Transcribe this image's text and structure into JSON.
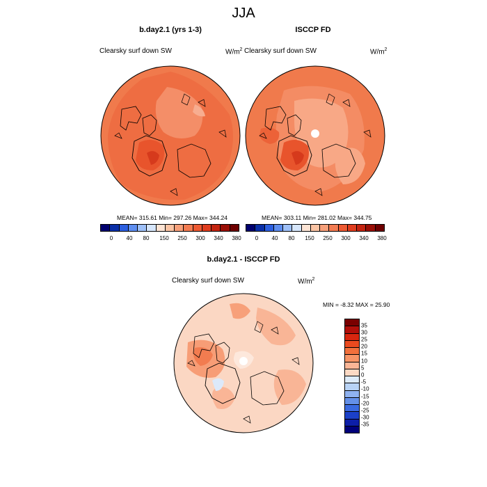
{
  "figure": {
    "season_title": "JJA"
  },
  "panels": {
    "model": {
      "title": "b.day2.1 (yrs 1-3)",
      "variable": "Clearsky surf down SW",
      "units_base": "W/m",
      "units_exp": "2",
      "stats": "MEAN= 315.61  Min= 297.26  Max= 344.24",
      "mean": 315.61,
      "min": 297.26,
      "max": 344.24
    },
    "obs": {
      "title": "ISCCP FD",
      "variable": "Clearsky surf down SW",
      "units_base": "W/m",
      "units_exp": "2",
      "stats": "MEAN= 303.11  Min= 281.02  Max= 344.75",
      "mean": 303.11,
      "min": 281.02,
      "max": 344.75
    },
    "diff": {
      "title": "b.day2.1 - ISCCP FD",
      "variable": "Clearsky surf down SW",
      "units_base": "W/m",
      "units_exp": "2",
      "stats": "MIN =  -8.32 MAX =  25.90",
      "min": -8.32,
      "max": 25.9
    }
  },
  "colorbars": {
    "absolute": {
      "labels": [
        "0",
        "40",
        "80",
        "150",
        "250",
        "300",
        "340",
        "380"
      ],
      "colors": [
        "#00006e",
        "#0a2fa8",
        "#2c5fe0",
        "#5e8ef0",
        "#9ec0f8",
        "#d6e6fb",
        "#fde4d4",
        "#fbc4a4",
        "#f7a07a",
        "#f37c52",
        "#ee5a32",
        "#e03d1e",
        "#c42410",
        "#9a0f06",
        "#6e0000"
      ]
    },
    "difference": {
      "labels": [
        "35",
        "30",
        "25",
        "20",
        "15",
        "10",
        "5",
        "0",
        "-5",
        "-10",
        "-15",
        "-20",
        "-25",
        "-30",
        "-35"
      ],
      "colors": [
        "#7a0000",
        "#b20f0a",
        "#d8260f",
        "#ea4a1f",
        "#f2703c",
        "#f79466",
        "#fab596",
        "#fcd9c4",
        "#ddebfa",
        "#b8d3f6",
        "#8fb2f0",
        "#6490e8",
        "#3a6ae0",
        "#1b40c8",
        "#0d1ea8",
        "#00007a"
      ]
    }
  }
}
